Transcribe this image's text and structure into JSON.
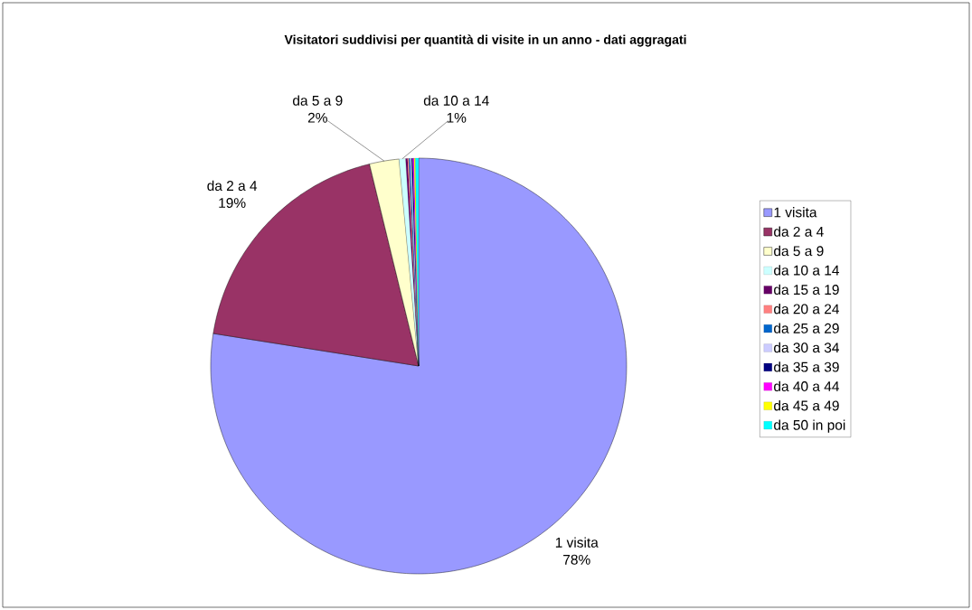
{
  "chart_data": {
    "type": "pie",
    "title": "Visitatori suddivisi per quantità di visite in un anno - dati aggragati",
    "categories": [
      "1 visita",
      "da 2 a 4",
      "da 5 a 9",
      "da 10 a 14",
      "da 15 a 19",
      "da 20 a 24",
      "da 25 a 29",
      "da 30 a 34",
      "da 35 a 39",
      "da 40 a 44",
      "da 45 a 49",
      "da 50 in poi"
    ],
    "values": [
      77.5,
      18.7,
      2.3,
      0.5,
      0.15,
      0.1,
      0.1,
      0.1,
      0.1,
      0.1,
      0.1,
      0.25
    ],
    "colors": [
      "#9999ff",
      "#993366",
      "#ffffcc",
      "#ccffff",
      "#660066",
      "#ff8080",
      "#0066cc",
      "#ccccff",
      "#000080",
      "#ff00ff",
      "#ffff00",
      "#00ffff"
    ],
    "value_labels": [
      "78%",
      "19%",
      "2%",
      "1%",
      null,
      null,
      null,
      null,
      null,
      null,
      null,
      null
    ],
    "legend": "right"
  }
}
